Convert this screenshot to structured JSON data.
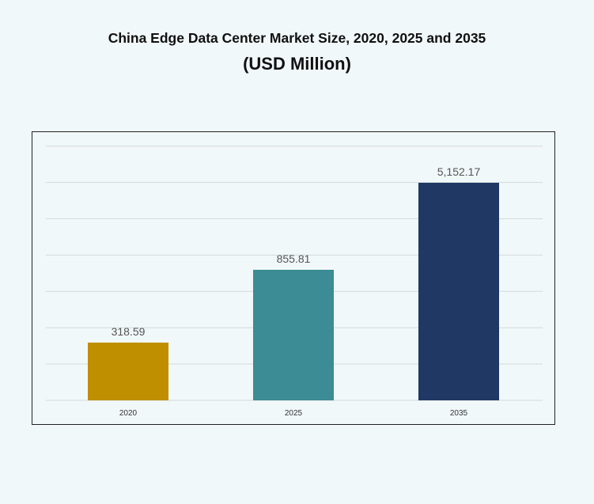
{
  "chart_data": {
    "type": "bar",
    "title": "China Edge Data Center Market Size, 2020, 2025 and 2035",
    "subtitle": "(USD Million)",
    "categories": [
      "2020",
      "2025",
      "2035"
    ],
    "values": [
      318.59,
      855.81,
      5152.17
    ],
    "data_labels": [
      "318.59",
      "855.81",
      "5,152.17"
    ],
    "colors": [
      "#c08f00",
      "#3b8c94",
      "#203864"
    ],
    "grid": true,
    "legend": "none",
    "xlabel": "",
    "ylabel": ""
  }
}
